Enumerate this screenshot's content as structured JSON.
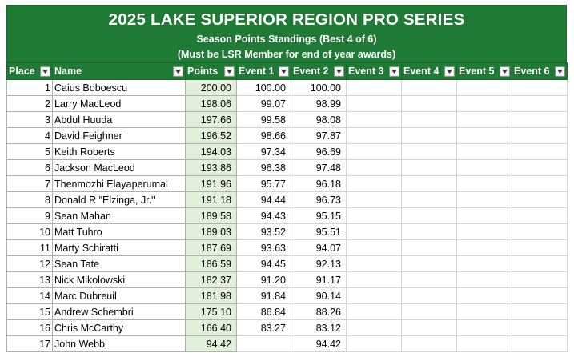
{
  "banner": {
    "title": "2025 LAKE SUPERIOR REGION PRO SERIES",
    "subtitle": "Season Points Standings (Best 4 of 6)",
    "note": "(Must be LSR Member for end of year awards)"
  },
  "columns": [
    "Place",
    "Name",
    "Points",
    "Event 1",
    "Event 2",
    "Event 3",
    "Event 4",
    "Event 5",
    "Event 6"
  ],
  "rows": [
    {
      "place": "1",
      "name": "Caius Boboescu",
      "points": "200.00",
      "events": [
        "100.00",
        "100.00",
        "",
        "",
        "",
        ""
      ]
    },
    {
      "place": "2",
      "name": "Larry MacLeod",
      "points": "198.06",
      "events": [
        "99.07",
        "98.99",
        "",
        "",
        "",
        ""
      ]
    },
    {
      "place": "3",
      "name": "Abdul Huuda",
      "points": "197.66",
      "events": [
        "99.58",
        "98.08",
        "",
        "",
        "",
        ""
      ]
    },
    {
      "place": "4",
      "name": "David Feighner",
      "points": "196.52",
      "events": [
        "98.66",
        "97.87",
        "",
        "",
        "",
        ""
      ]
    },
    {
      "place": "5",
      "name": "Keith Roberts",
      "points": "194.03",
      "events": [
        "97.34",
        "96.69",
        "",
        "",
        "",
        ""
      ]
    },
    {
      "place": "6",
      "name": "Jackson MacLeod",
      "points": "193.86",
      "events": [
        "96.38",
        "97.48",
        "",
        "",
        "",
        ""
      ]
    },
    {
      "place": "7",
      "name": "Thenmozhi Elayaperumal",
      "points": "191.96",
      "events": [
        "95.77",
        "96.18",
        "",
        "",
        "",
        ""
      ]
    },
    {
      "place": "8",
      "name": "Donald R \"Elzinga, Jr.\"",
      "points": "191.18",
      "events": [
        "94.44",
        "96.73",
        "",
        "",
        "",
        ""
      ]
    },
    {
      "place": "9",
      "name": "Sean Mahan",
      "points": "189.58",
      "events": [
        "94.43",
        "95.15",
        "",
        "",
        "",
        ""
      ]
    },
    {
      "place": "10",
      "name": "Matt Tuhro",
      "points": "189.03",
      "events": [
        "93.52",
        "95.51",
        "",
        "",
        "",
        ""
      ]
    },
    {
      "place": "11",
      "name": "Marty Schiratti",
      "points": "187.69",
      "events": [
        "93.63",
        "94.07",
        "",
        "",
        "",
        ""
      ]
    },
    {
      "place": "12",
      "name": "Sean Tate",
      "points": "186.59",
      "events": [
        "94.45",
        "92.13",
        "",
        "",
        "",
        ""
      ]
    },
    {
      "place": "13",
      "name": "Nick Mikolowski",
      "points": "182.37",
      "events": [
        "91.20",
        "91.17",
        "",
        "",
        "",
        ""
      ]
    },
    {
      "place": "14",
      "name": "Marc Dubreuil",
      "points": "181.98",
      "events": [
        "91.84",
        "90.14",
        "",
        "",
        "",
        ""
      ]
    },
    {
      "place": "15",
      "name": "Andrew Schembri",
      "points": "175.10",
      "events": [
        "86.84",
        "88.26",
        "",
        "",
        "",
        ""
      ]
    },
    {
      "place": "16",
      "name": "Chris McCarthy",
      "points": "166.40",
      "events": [
        "83.27",
        "83.12",
        "",
        "",
        "",
        ""
      ]
    },
    {
      "place": "17",
      "name": "John Webb",
      "points": "94.42",
      "events": [
        "",
        "94.42",
        "",
        "",
        "",
        ""
      ]
    }
  ],
  "colors": {
    "header_green": "#1e7a34",
    "points_fill": "#e2efda"
  }
}
